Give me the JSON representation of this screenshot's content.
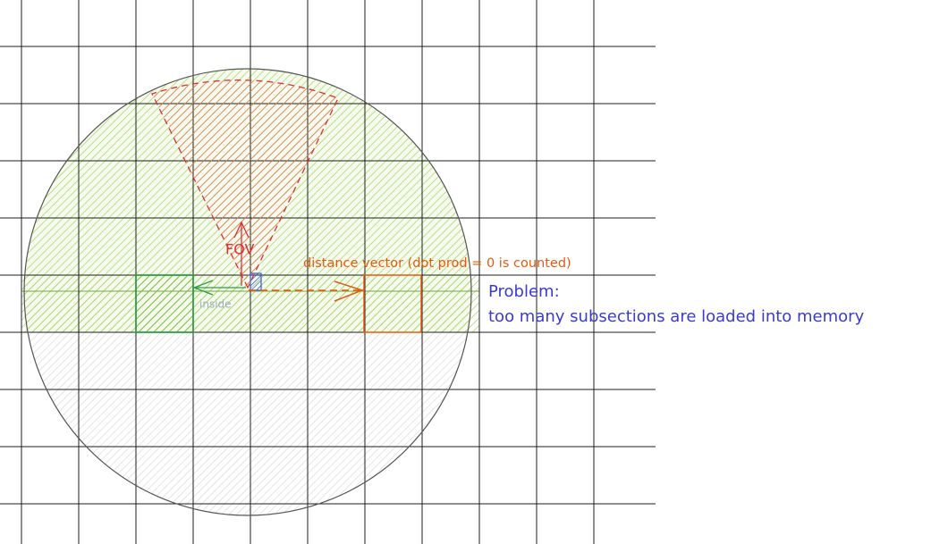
{
  "labels": {
    "fov": "FOV",
    "distance_vector": "distance vector (dot prod = 0 is counted)",
    "inside": "inside",
    "problem_title": "Problem:",
    "problem_text": "too many subsections are loaded into memory"
  }
}
